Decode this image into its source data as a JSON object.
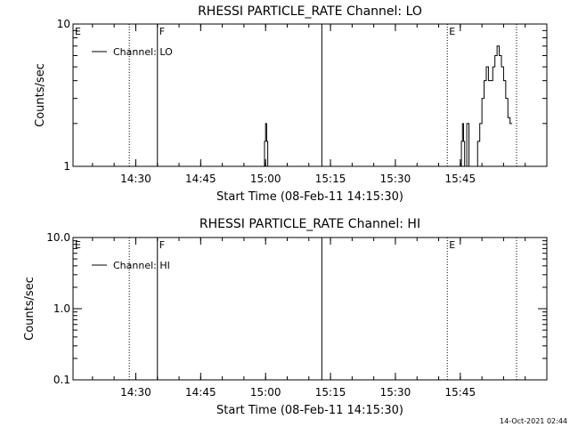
{
  "chart_data": [
    {
      "type": "line",
      "title": "RHESSI PARTICLE_RATE Channel: LO",
      "xlabel": "Start Time (08-Feb-11 14:15:30)",
      "ylabel": "Counts/sec",
      "yscale": "log",
      "xlim": [
        "14:15:30",
        "16:05:00"
      ],
      "ylim": [
        1,
        10
      ],
      "x_ticks": [
        "14:30",
        "14:45",
        "15:00",
        "15:15",
        "15:30",
        "15:45"
      ],
      "y_ticks": [
        "1",
        "10"
      ],
      "legend": {
        "placement": "top-left",
        "entries": [
          "Channel: LO"
        ]
      },
      "markers": [
        {
          "label": "E",
          "time": "14:15:30",
          "style": "dotted",
          "show_line": false
        },
        {
          "label": "",
          "time": "14:28:30",
          "style": "dotted",
          "show_line": true
        },
        {
          "label": "F",
          "time": "14:35:00",
          "style": "solid",
          "show_line": true
        },
        {
          "label": "",
          "time": "15:13:00",
          "style": "solid",
          "show_line": true
        },
        {
          "label": "E",
          "time": "15:42:00",
          "style": "dotted",
          "show_line": true
        },
        {
          "label": "",
          "time": "15:58:00",
          "style": "dotted",
          "show_line": true
        }
      ],
      "series": [
        {
          "name": "Channel: LO",
          "x": [
            "14:59:30",
            "14:59:45",
            "15:00:00",
            "15:00:15",
            "15:00:30",
            "15:00:45",
            "15:45:00",
            "15:45:15",
            "15:45:30",
            "15:45:45",
            "15:46:00",
            "15:46:15",
            "15:46:30",
            "15:46:45",
            "15:47:00",
            "15:47:15",
            "15:47:30",
            "15:47:45",
            "15:48:00",
            "15:48:30",
            "15:49:00",
            "15:49:30",
            "15:50:00",
            "15:50:30",
            "15:51:00",
            "15:51:30",
            "15:52:00",
            "15:52:30",
            "15:53:00",
            "15:53:30",
            "15:54:00",
            "15:54:30",
            "15:55:00",
            "15:55:30",
            "15:56:00",
            "15:56:30",
            "15:57:00"
          ],
          "y": [
            1,
            1.5,
            2.0,
            1.5,
            1,
            1,
            1,
            1.5,
            2.0,
            1.5,
            1,
            1,
            2.0,
            2.0,
            1,
            1,
            1,
            1,
            1,
            1,
            1.5,
            2.0,
            3.0,
            4.0,
            5.0,
            4.0,
            4.0,
            5.0,
            6.0,
            7.0,
            6.0,
            5.0,
            4.0,
            3.0,
            2.2,
            2.0,
            2.0
          ]
        }
      ]
    },
    {
      "type": "line",
      "title": "RHESSI PARTICLE_RATE Channel: HI",
      "xlabel": "Start Time (08-Feb-11 14:15:30)",
      "ylabel": "Counts/sec",
      "yscale": "log",
      "xlim": [
        "14:15:30",
        "16:05:00"
      ],
      "ylim": [
        0.1,
        10.0
      ],
      "x_ticks": [
        "14:30",
        "14:45",
        "15:00",
        "15:15",
        "15:30",
        "15:45"
      ],
      "y_ticks": [
        "0.1",
        "1.0",
        "10.0"
      ],
      "legend": {
        "placement": "top-left",
        "entries": [
          "Channel: HI"
        ]
      },
      "markers": [
        {
          "label": "E",
          "time": "14:15:30",
          "style": "dotted",
          "show_line": false
        },
        {
          "label": "",
          "time": "14:28:30",
          "style": "dotted",
          "show_line": true
        },
        {
          "label": "F",
          "time": "14:35:00",
          "style": "solid",
          "show_line": true
        },
        {
          "label": "",
          "time": "15:13:00",
          "style": "solid",
          "show_line": true
        },
        {
          "label": "E",
          "time": "15:42:00",
          "style": "dotted",
          "show_line": true
        },
        {
          "label": "",
          "time": "15:58:00",
          "style": "dotted",
          "show_line": true
        }
      ],
      "series": [
        {
          "name": "Channel: HI",
          "x": [],
          "y": []
        }
      ]
    }
  ],
  "footer": {
    "timestamp": "14-Oct-2021 02:44"
  }
}
